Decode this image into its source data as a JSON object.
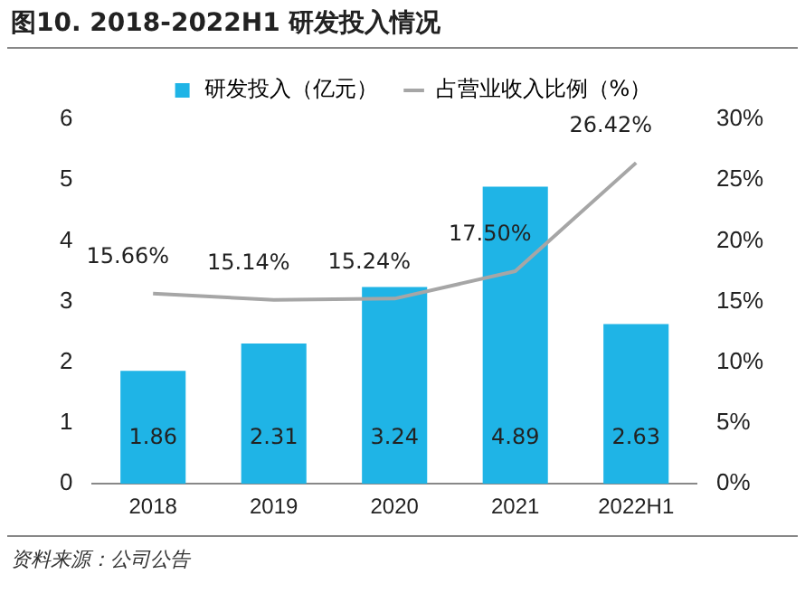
{
  "chart_data": {
    "type": "bar",
    "title": "图10. 2018-2022H1 研发投入情况",
    "categories": [
      "2018",
      "2019",
      "2020",
      "2021",
      "2022H1"
    ],
    "series": [
      {
        "name": "研发投入（亿元）",
        "color": "#1fb4e6",
        "values": [
          1.86,
          2.31,
          3.24,
          4.89,
          2.63
        ],
        "value_labels": [
          "1.86",
          "2.31",
          "3.24",
          "4.89",
          "2.63"
        ]
      },
      {
        "name": "占营业收入比例（%）",
        "type": "line",
        "axis": "y2",
        "color": "#a6a6a6",
        "values": [
          15.66,
          15.14,
          15.24,
          17.5,
          26.42
        ],
        "value_labels": [
          "15.66%",
          "15.14%",
          "15.24%",
          "17.50%",
          "26.42%"
        ]
      }
    ],
    "ylim": [
      0,
      6
    ],
    "yticks": [
      0,
      1,
      2,
      3,
      4,
      5,
      6
    ],
    "y2lim": [
      0,
      30
    ],
    "y2ticks": [
      {
        "value": 0,
        "label": "0%"
      },
      {
        "value": 5,
        "label": "5%"
      },
      {
        "value": 10,
        "label": "10%"
      },
      {
        "value": 15,
        "label": "15%"
      },
      {
        "value": 20,
        "label": "20%"
      },
      {
        "value": 25,
        "label": "25%"
      },
      {
        "value": 30,
        "label": "30%"
      }
    ],
    "grid": false,
    "legend": "top",
    "marker": "none",
    "line_style": "solid",
    "annotations": [
      "资料来源：公司公告"
    ]
  }
}
